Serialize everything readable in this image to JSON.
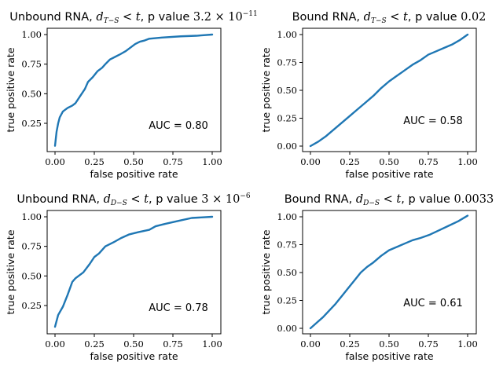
{
  "colors": {
    "line": "#1f77b4"
  },
  "chart_data": [
    {
      "type": "line",
      "title": {
        "prefix": "Unbound RNA, ",
        "var": "d",
        "var_sub": "T−S",
        "cond": " < t",
        "pv_label": ", p value ",
        "pv_mantissa": "3.2 × 10",
        "pv_exp": "−11",
        "pv_plain": ""
      },
      "xlabel": "false positive rate",
      "ylabel": "true positive rate",
      "xlim": [
        0,
        1
      ],
      "ylim": [
        0.05,
        1
      ],
      "xticks": [
        "0.00",
        "0.25",
        "0.50",
        "0.75",
        "1.00"
      ],
      "yticks": [
        "0.25",
        "0.50",
        "0.75",
        "1.00"
      ],
      "annotation": "AUC = 0.80",
      "series": [
        {
          "x": [
            0.0,
            0.01,
            0.02,
            0.03,
            0.05,
            0.08,
            0.11,
            0.13,
            0.16,
            0.19,
            0.21,
            0.24,
            0.27,
            0.3,
            0.32,
            0.35,
            0.38,
            0.41,
            0.45,
            0.48,
            0.51,
            0.54,
            0.57,
            0.6,
            0.64,
            0.68,
            0.8,
            0.9,
            1.0
          ],
          "y": [
            0.06,
            0.18,
            0.25,
            0.3,
            0.35,
            0.38,
            0.4,
            0.42,
            0.48,
            0.54,
            0.6,
            0.64,
            0.69,
            0.72,
            0.75,
            0.79,
            0.81,
            0.83,
            0.86,
            0.89,
            0.92,
            0.94,
            0.95,
            0.965,
            0.97,
            0.975,
            0.985,
            0.99,
            1.0
          ]
        }
      ]
    },
    {
      "type": "line",
      "title": {
        "prefix": "Bound RNA, ",
        "var": "d",
        "var_sub": "T−S",
        "cond": " < t",
        "pv_label": ", p value ",
        "pv_mantissa": "",
        "pv_exp": "",
        "pv_plain": "0.02"
      },
      "xlabel": "false positive rate",
      "ylabel": "true positive rate",
      "xlim": [
        0,
        1
      ],
      "ylim": [
        0,
        1
      ],
      "xticks": [
        "0.00",
        "0.25",
        "0.50",
        "0.75",
        "1.00"
      ],
      "yticks": [
        "0.00",
        "0.25",
        "0.50",
        "0.75",
        "1.00"
      ],
      "annotation": "AUC = 0.58",
      "series": [
        {
          "x": [
            0.0,
            0.05,
            0.1,
            0.15,
            0.2,
            0.25,
            0.3,
            0.35,
            0.4,
            0.45,
            0.5,
            0.55,
            0.6,
            0.65,
            0.7,
            0.75,
            0.8,
            0.85,
            0.9,
            0.95,
            1.0
          ],
          "y": [
            0.0,
            0.04,
            0.09,
            0.15,
            0.21,
            0.27,
            0.33,
            0.39,
            0.45,
            0.52,
            0.58,
            0.63,
            0.68,
            0.73,
            0.77,
            0.82,
            0.85,
            0.88,
            0.91,
            0.95,
            1.0
          ]
        }
      ]
    },
    {
      "type": "line",
      "title": {
        "prefix": "Unbound RNA, ",
        "var": "d",
        "var_sub": "D−S",
        "cond": " < t",
        "pv_label": ", p value ",
        "pv_mantissa": "3 × 10",
        "pv_exp": "−6",
        "pv_plain": ""
      },
      "xlabel": "false positive rate",
      "ylabel": "true positive rate",
      "xlim": [
        0,
        1
      ],
      "ylim": [
        0.05,
        1
      ],
      "xticks": [
        "0.00",
        "0.25",
        "0.50",
        "0.75",
        "1.00"
      ],
      "yticks": [
        "0.25",
        "0.50",
        "0.75",
        "1.00"
      ],
      "annotation": "AUC = 0.78",
      "series": [
        {
          "x": [
            0.0,
            0.02,
            0.05,
            0.08,
            0.11,
            0.13,
            0.16,
            0.18,
            0.22,
            0.25,
            0.28,
            0.32,
            0.38,
            0.42,
            0.47,
            0.53,
            0.6,
            0.64,
            0.7,
            0.8,
            0.87,
            1.0
          ],
          "y": [
            0.07,
            0.17,
            0.24,
            0.34,
            0.45,
            0.48,
            0.51,
            0.53,
            0.6,
            0.66,
            0.69,
            0.75,
            0.79,
            0.82,
            0.85,
            0.87,
            0.89,
            0.92,
            0.94,
            0.97,
            0.99,
            1.0
          ]
        }
      ]
    },
    {
      "type": "line",
      "title": {
        "prefix": "Bound RNA, ",
        "var": "d",
        "var_sub": "D−S",
        "cond": " < t",
        "pv_label": ", p value ",
        "pv_mantissa": "",
        "pv_exp": "",
        "pv_plain": "0.0033"
      },
      "xlabel": "false positive rate",
      "ylabel": "true positive rate",
      "xlim": [
        0,
        1
      ],
      "ylim": [
        0,
        1
      ],
      "xticks": [
        "0.00",
        "0.25",
        "0.50",
        "0.75",
        "1.00"
      ],
      "yticks": [
        "0.00",
        "0.25",
        "0.50",
        "0.75",
        "1.00"
      ],
      "annotation": "AUC = 0.61",
      "series": [
        {
          "x": [
            0.0,
            0.04,
            0.08,
            0.12,
            0.16,
            0.2,
            0.24,
            0.28,
            0.32,
            0.36,
            0.4,
            0.45,
            0.5,
            0.55,
            0.6,
            0.65,
            0.7,
            0.76,
            0.82,
            0.88,
            0.94,
            1.0
          ],
          "y": [
            0.0,
            0.05,
            0.1,
            0.16,
            0.22,
            0.29,
            0.36,
            0.43,
            0.5,
            0.55,
            0.59,
            0.65,
            0.7,
            0.73,
            0.76,
            0.79,
            0.81,
            0.84,
            0.88,
            0.92,
            0.96,
            1.01
          ]
        }
      ]
    }
  ]
}
